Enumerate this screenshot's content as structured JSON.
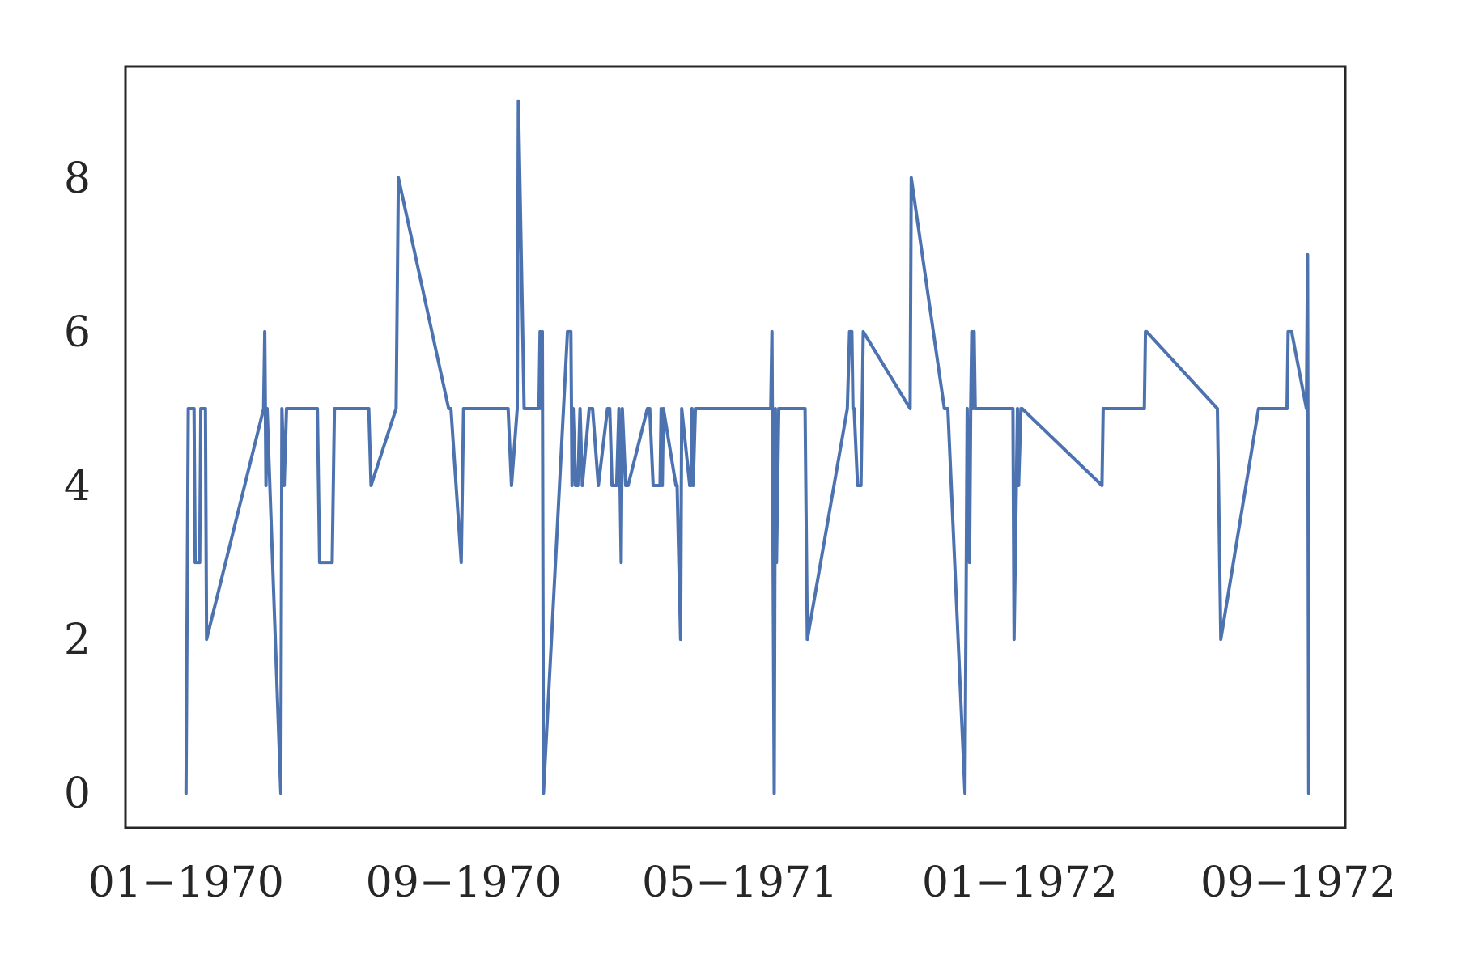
{
  "chart_data": {
    "type": "line",
    "title": "",
    "xlabel": "",
    "ylabel": "",
    "x_axis": {
      "type": "date",
      "range": [
        "1969-11-09",
        "1972-10-12"
      ],
      "ticks": [
        {
          "date": "1970-01-01",
          "label": "01−1970"
        },
        {
          "date": "1970-09-01",
          "label": "09−1970"
        },
        {
          "date": "1971-05-01",
          "label": "05−1971"
        },
        {
          "date": "1972-01-01",
          "label": "01−1972"
        },
        {
          "date": "1972-09-01",
          "label": "09−1972"
        }
      ]
    },
    "y_axis": {
      "range": [
        -0.45,
        9.45
      ],
      "ticks": [
        {
          "value": 0,
          "label": "0"
        },
        {
          "value": 2,
          "label": "2"
        },
        {
          "value": 4,
          "label": "4"
        },
        {
          "value": 6,
          "label": "6"
        },
        {
          "value": 8,
          "label": "8"
        }
      ]
    },
    "grid": false,
    "legend": "none",
    "colors": {
      "line": "#4c72b0",
      "axes": "#262626",
      "text": "#262626",
      "background": "#ffffff"
    },
    "series": [
      {
        "x": [
          "1970-01-01",
          "1970-01-03",
          "1970-01-08",
          "1970-01-09",
          "1970-01-13",
          "1970-01-14",
          "1970-01-18",
          "1970-01-19",
          "1970-03-10",
          "1970-03-11",
          "1970-03-12",
          "1970-03-13",
          "1970-03-25",
          "1970-03-26",
          "1970-03-28",
          "1970-03-30",
          "1970-04-26",
          "1970-04-28",
          "1970-05-09",
          "1970-05-11",
          "1970-06-10",
          "1970-06-12",
          "1970-07-04",
          "1970-07-06",
          "1970-08-19",
          "1970-08-21",
          "1970-08-30",
          "1970-09-01",
          "1970-10-10",
          "1970-10-13",
          "1970-10-18",
          "1970-10-19",
          "1970-10-24",
          "1970-11-06",
          "1970-11-07",
          "1970-11-08",
          "1970-11-09",
          "1970-11-10",
          "1970-12-01",
          "1970-12-04",
          "1970-12-05",
          "1970-12-06",
          "1970-12-08",
          "1970-12-10",
          "1970-12-12",
          "1970-12-14",
          "1970-12-20",
          "1970-12-23",
          "1970-12-28",
          "1971-01-05",
          "1971-01-07",
          "1971-01-09",
          "1971-01-13",
          "1971-01-15",
          "1971-01-17",
          "1971-01-18",
          "1971-01-21",
          "1971-01-23",
          "1971-02-09",
          "1971-02-11",
          "1971-02-14",
          "1971-02-17",
          "1971-02-20",
          "1971-02-21",
          "1971-02-22",
          "1971-02-23",
          "1971-03-06",
          "1971-03-07",
          "1971-03-10",
          "1971-03-11",
          "1971-03-18",
          "1971-03-19",
          "1971-03-20",
          "1971-03-21",
          "1971-03-23",
          "1971-05-28",
          "1971-05-29",
          "1971-05-31",
          "1971-06-01",
          "1971-06-02",
          "1971-06-03",
          "1971-06-04",
          "1971-06-27",
          "1971-06-29",
          "1971-08-03",
          "1971-08-05",
          "1971-08-07",
          "1971-08-08",
          "1971-08-09",
          "1971-08-12",
          "1971-08-15",
          "1971-08-16",
          "1971-08-17",
          "1971-09-27",
          "1971-09-28",
          "1971-10-27",
          "1971-10-30",
          "1971-11-02",
          "1971-11-14",
          "1971-11-16",
          "1971-11-18",
          "1971-11-19",
          "1971-11-20",
          "1971-11-21",
          "1971-11-22",
          "1971-11-23",
          "1971-12-26",
          "1971-12-27",
          "1971-12-30",
          "1971-12-31",
          "1972-01-02",
          "1972-01-03",
          "1972-03-13",
          "1972-03-14",
          "1972-04-19",
          "1972-04-20",
          "1972-04-21",
          "1972-06-22",
          "1972-06-25",
          "1972-07-28",
          "1972-08-22",
          "1972-08-23",
          "1972-08-26",
          "1972-09-08",
          "1972-09-09",
          "1972-09-10"
        ],
        "y": [
          0,
          5,
          5,
          3,
          3,
          5,
          5,
          2,
          5,
          6,
          4,
          5,
          0,
          5,
          4,
          5,
          5,
          3,
          3,
          5,
          5,
          4,
          5,
          8,
          5,
          5,
          3,
          5,
          5,
          4,
          5,
          9,
          5,
          5,
          6,
          5,
          6,
          0,
          6,
          6,
          4,
          5,
          4,
          4,
          5,
          4,
          5,
          5,
          4,
          5,
          5,
          4,
          4,
          5,
          3,
          5,
          4,
          4,
          5,
          5,
          4,
          4,
          4,
          5,
          4,
          5,
          4,
          4,
          2,
          5,
          4,
          4,
          5,
          4,
          5,
          5,
          6,
          0,
          5,
          3,
          4,
          5,
          5,
          2,
          5,
          6,
          6,
          5,
          5,
          4,
          4,
          5,
          6,
          5,
          8,
          5,
          5,
          4,
          0,
          5,
          3,
          5,
          6,
          5,
          6,
          5,
          5,
          2,
          5,
          4,
          5,
          5,
          4,
          5,
          5,
          6,
          6,
          5,
          2,
          5,
          5,
          6,
          6,
          5,
          7,
          0
        ]
      }
    ]
  }
}
